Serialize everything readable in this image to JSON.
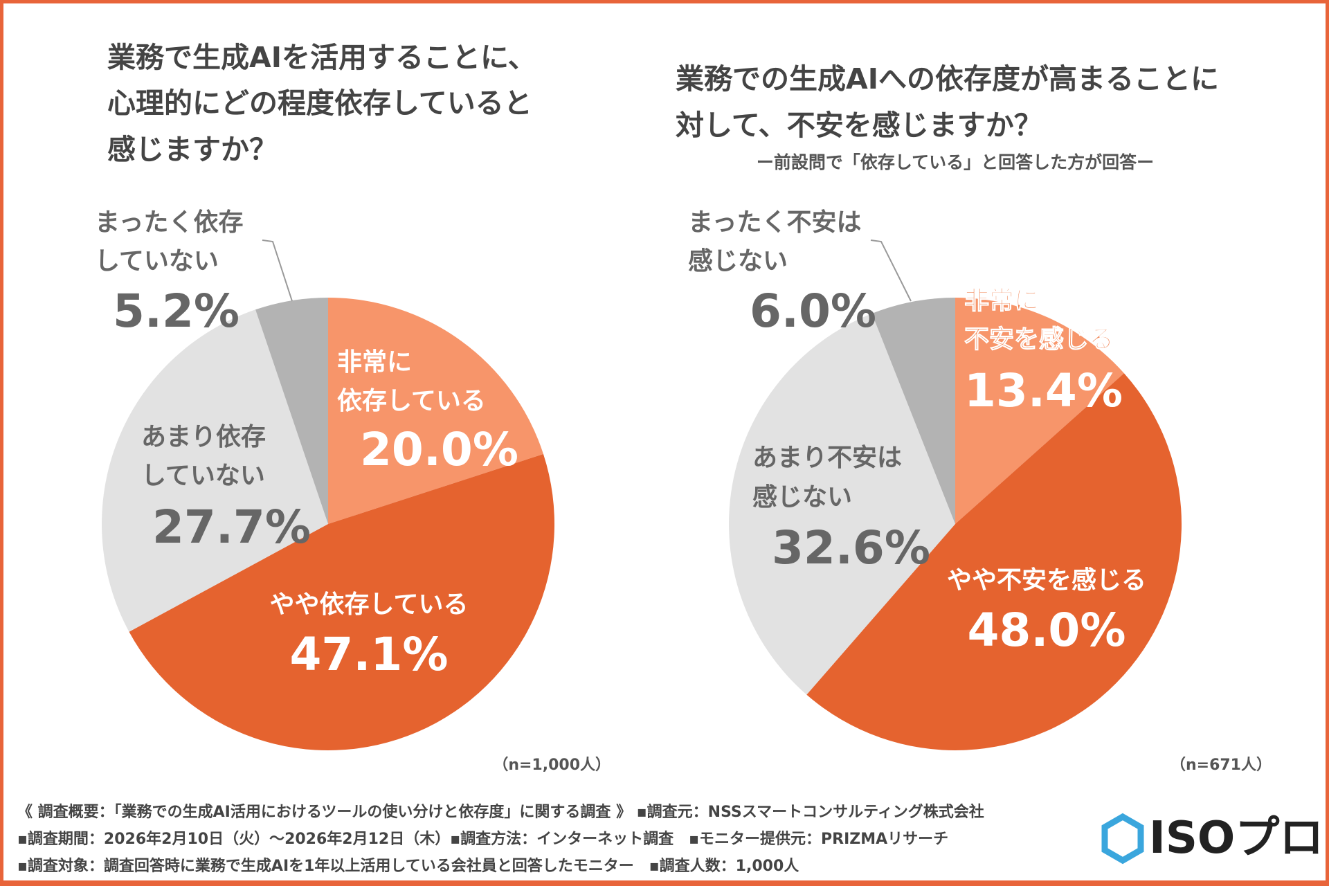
{
  "colors": {
    "frame": "#E8643A",
    "very": "#F7956A",
    "somewhat": "#E5632F",
    "notmuch": "#E2E2E2",
    "notatall": "#B3B3B3"
  },
  "chart_data": [
    {
      "type": "pie",
      "title": [
        "業務で生成AIを活用することに、",
        "心理的にどの程度依存していると",
        "感じますか？"
      ],
      "categories": [
        "非常に依存している",
        "やや依存している",
        "あまり依存していない",
        "まったく依存していない"
      ],
      "values": [
        20.0,
        47.1,
        27.7,
        5.2
      ],
      "labels": [
        {
          "lines": [
            "非常に",
            "依存している"
          ],
          "pct": "20.0%"
        },
        {
          "lines": [
            "やや依存している"
          ],
          "pct": "47.1%"
        },
        {
          "lines": [
            "あまり依存",
            "していない"
          ],
          "pct": "27.7%"
        },
        {
          "lines": [
            "まったく依存",
            "していない"
          ],
          "pct": "5.2%"
        }
      ],
      "n": "（n=1,000人）"
    },
    {
      "type": "pie",
      "title": [
        "業務での生成AIへの依存度が高まることに",
        "対して、不安を感じますか？"
      ],
      "subtitle": "ー前設問で「依存している」と回答した方が回答ー",
      "categories": [
        "非常に不安を感じる",
        "やや不安を感じる",
        "あまり不安は感じない",
        "まったく不安は感じない"
      ],
      "values": [
        13.4,
        48.0,
        32.6,
        6.0
      ],
      "labels": [
        {
          "lines": [
            "非常に",
            "不安を感じる"
          ],
          "pct": "13.4%"
        },
        {
          "lines": [
            "やや不安を感じる"
          ],
          "pct": "48.0%"
        },
        {
          "lines": [
            "あまり不安は",
            "感じない"
          ],
          "pct": "32.6%"
        },
        {
          "lines": [
            "まったく不安は",
            "感じない"
          ],
          "pct": "6.0%"
        }
      ],
      "n": "（n=671人）"
    }
  ],
  "footer": [
    "《 調査概要：「業務での生成AI活用におけるツールの使い分けと依存度」に関する調査 》 ▪調査元：NSSスマートコンサルティング株式会社",
    "▪調査期間：2026年2月10日（火）～2026年2月12日（木）▪調査方法：インターネット調査　▪モニター提供元：PRIZMAリサーチ",
    "▪調査対象：調査回答時に業務で生成AIを1年以上活用している会社員と回答したモニター　▪調査人数：1,000人"
  ],
  "logo": {
    "text": "ISOプロ",
    "icon": "hexagon-icon"
  }
}
